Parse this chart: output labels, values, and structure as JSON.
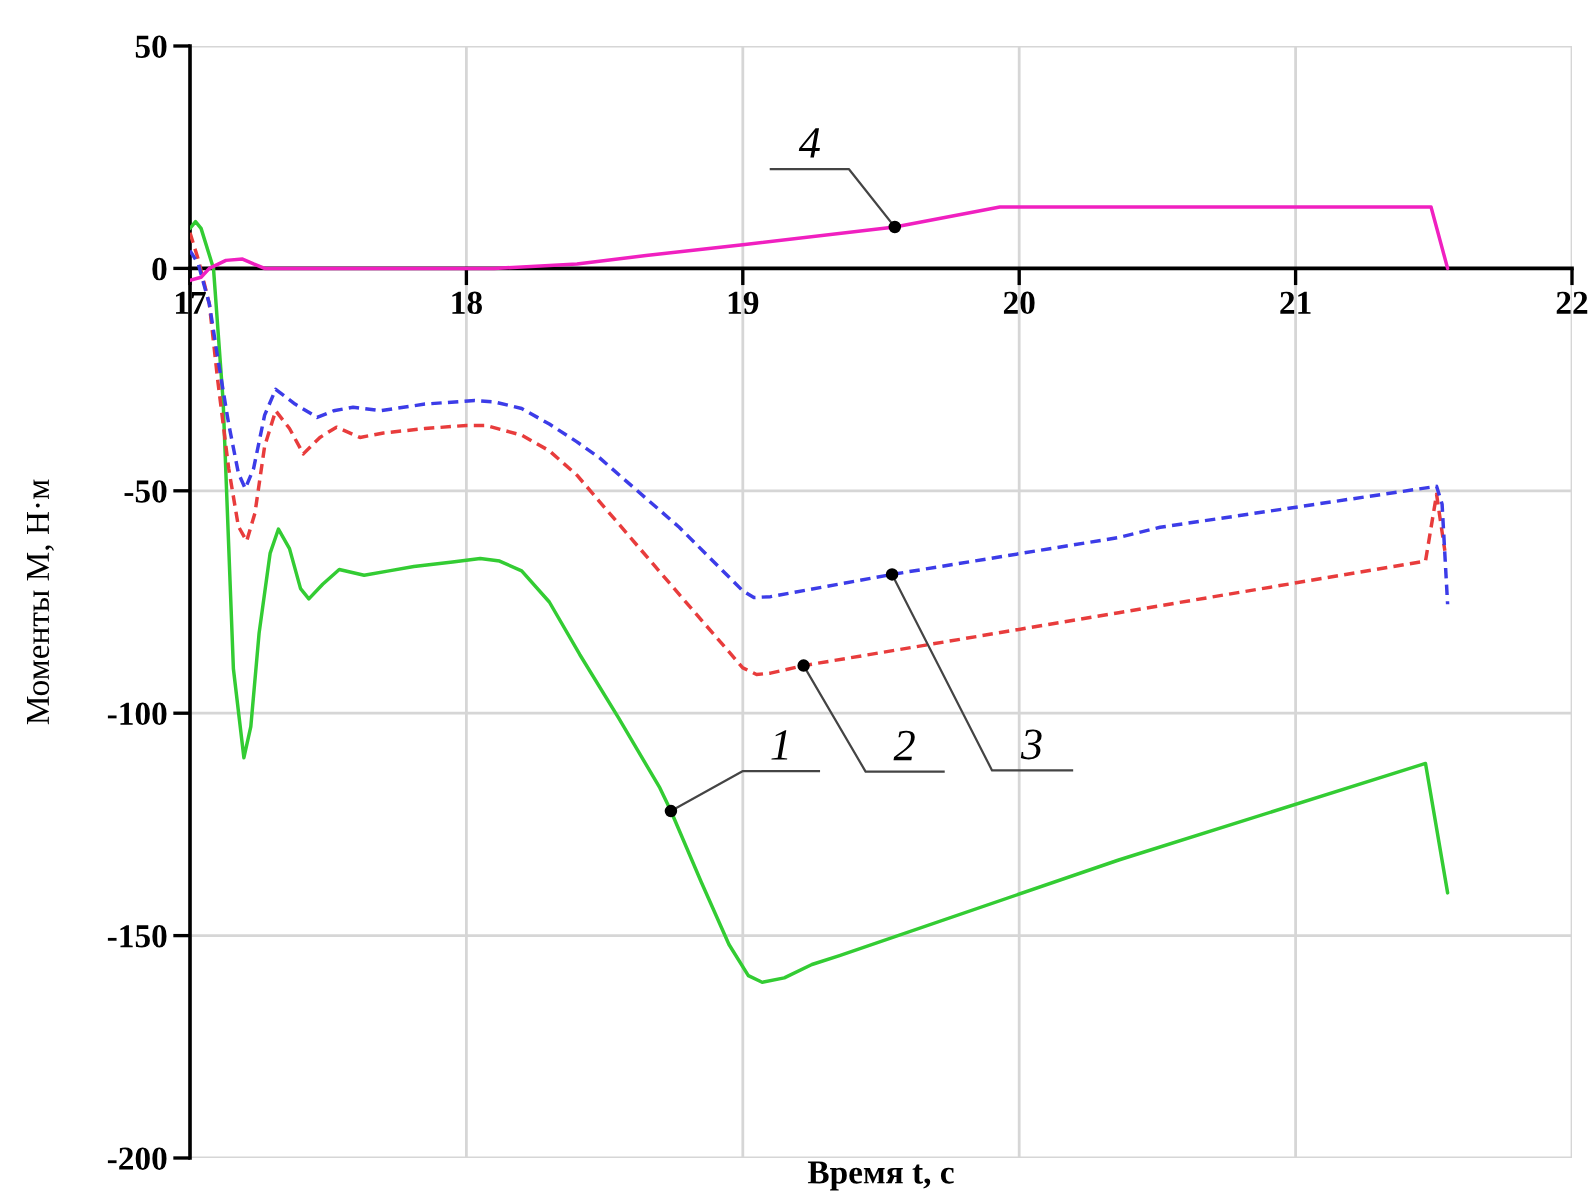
{
  "chart_data": {
    "type": "line",
    "xlabel": "Время t, с",
    "ylabel": "Моменты M, Н·м",
    "xlim": [
      17,
      22
    ],
    "ylim": [
      -200,
      50
    ],
    "xticks": [
      17,
      18,
      19,
      20,
      21,
      22
    ],
    "yticks": [
      -200,
      -150,
      -100,
      -50,
      0,
      50
    ],
    "grid": true,
    "series": [
      {
        "color": "#33cc33",
        "line_style": "solid",
        "x": [
          17.0,
          17.02,
          17.04,
          17.085,
          17.12,
          17.157,
          17.195,
          17.22,
          17.25,
          17.29,
          17.32,
          17.36,
          17.4,
          17.43,
          17.48,
          17.54,
          17.63,
          17.72,
          17.81,
          17.95,
          18.05,
          18.12,
          18.2,
          18.3,
          18.41,
          18.55,
          18.7,
          18.74,
          18.85,
          18.95,
          19.02,
          19.07,
          19.15,
          19.25,
          19.35,
          20.36,
          21.47,
          21.55
        ],
        "values": [
          9,
          10.5,
          9,
          0,
          -30,
          -90,
          -110,
          -103,
          -82,
          -64,
          -58.6,
          -63,
          -72,
          -74.3,
          -71,
          -67.7,
          -69,
          -68,
          -67,
          -66,
          -65.2,
          -65.8,
          -68,
          -75,
          -86.8,
          -101,
          -116.8,
          -122,
          -138,
          -152,
          -159,
          -160.5,
          -159.5,
          -156.5,
          -154.5,
          -133,
          -111.3,
          -140.4
        ]
      },
      {
        "color": "#e83c3c",
        "line_style": "dashed",
        "x": [
          17.0,
          17.03,
          17.07,
          17.1,
          17.14,
          17.175,
          17.205,
          17.235,
          17.27,
          17.31,
          17.36,
          17.41,
          17.47,
          17.53,
          17.615,
          17.7,
          17.85,
          18.0,
          18.07,
          18.2,
          18.3,
          18.4,
          18.48,
          18.77,
          19.0,
          19.05,
          19.1,
          19.22,
          20.36,
          21.47,
          21.51,
          21.54
        ],
        "values": [
          8,
          2,
          -8,
          -25,
          -45,
          -58,
          -61.3,
          -55,
          -40,
          -32,
          -36,
          -41.7,
          -38,
          -35.7,
          -38,
          -37,
          -36,
          -35.3,
          -35.3,
          -37.5,
          -41,
          -46.5,
          -52.3,
          -73.3,
          -89.8,
          -91.3,
          -91,
          -89.3,
          -77.4,
          -65.8,
          -50.8,
          -63.5
        ]
      },
      {
        "color": "#3c3ce8",
        "line_style": "dashed",
        "x": [
          17.0,
          17.03,
          17.07,
          17.1,
          17.14,
          17.175,
          17.2,
          17.23,
          17.27,
          17.31,
          17.38,
          17.46,
          17.52,
          17.59,
          17.69,
          17.85,
          18.03,
          18.1,
          18.2,
          18.3,
          18.4,
          18.48,
          18.77,
          19.0,
          19.04,
          19.1,
          19.54,
          20.36,
          20.51,
          21.51,
          21.53,
          21.55
        ],
        "values": [
          4,
          1,
          -8,
          -20,
          -35,
          -46,
          -49.5,
          -45,
          -33,
          -27.2,
          -30.5,
          -33.5,
          -32,
          -31.2,
          -32,
          -30.5,
          -29.7,
          -30,
          -31.5,
          -35,
          -39,
          -42.5,
          -58.2,
          -72.5,
          -74,
          -73.8,
          -68.8,
          -60.5,
          -58.2,
          -49,
          -53,
          -75.5
        ]
      },
      {
        "color": "#f020c0",
        "line_style": "solid",
        "x": [
          17.0,
          17.04,
          17.07,
          17.13,
          17.19,
          17.23,
          17.27,
          18.1,
          18.4,
          18.65,
          19.0,
          19.55,
          19.93,
          21.49,
          21.55
        ],
        "values": [
          -2.7,
          -2,
          0,
          1.8,
          2.1,
          1,
          0,
          0,
          1,
          2.9,
          5.3,
          9.3,
          13.8,
          13.8,
          0
        ]
      }
    ],
    "annotations": [
      {
        "text": "1",
        "x": 18.74,
        "y": -122
      },
      {
        "text": "2",
        "x": 19.22,
        "y": -89.3
      },
      {
        "text": "3",
        "x": 19.54,
        "y": -68.8
      },
      {
        "text": "4",
        "x": 19.55,
        "y": 9.3
      }
    ]
  }
}
